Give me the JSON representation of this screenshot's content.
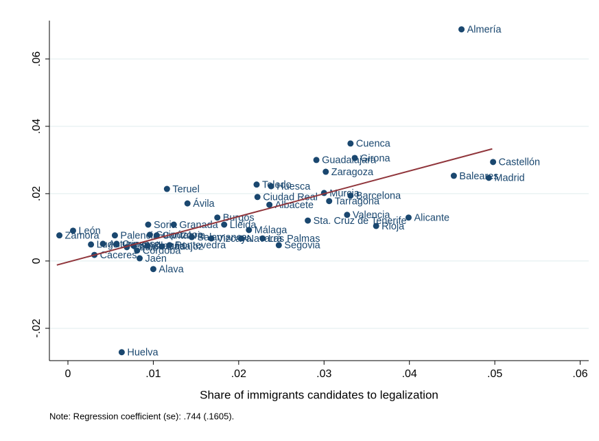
{
  "chart_data": {
    "type": "scatter",
    "x_label": "Share of immigrants candidates to legalization",
    "note": "Note: Regression coefficient (se): .744 (.1605).",
    "color": "#1a476f",
    "labels": [
      "Almería",
      "Cuenca",
      "Girona",
      "Guadalajara",
      "Zaragoza",
      "Castellón",
      "Baleares",
      "Madrid",
      "Teruel",
      "Toledo",
      "Huesca",
      "Murcia",
      "Barcelona",
      "Ciudad Real",
      "Tarragona",
      "Albacete",
      "Ávila",
      "Burgos",
      "Lleida",
      "Málaga",
      "Valencia",
      "Sta. Cruz de Tenerife",
      "Alicante",
      "Rioja",
      "León",
      "Zamora",
      "Soria",
      "Granada",
      "Palencia",
      "Las Palmas",
      "Segovia",
      "Navarra",
      "Vizcaya",
      "Salamanca",
      "Pontevedra",
      "Alava",
      "Huelva",
      "Cáceres",
      "Jaén",
      "Lugo",
      "Asturias",
      "Ourense",
      "Cádiz",
      "Sevilla",
      "Coruña",
      "Guipúzcoa",
      "Cantabria",
      "Córdoba",
      "Badajoz"
    ],
    "x": [
      0.0461,
      0.0331,
      0.0336,
      0.0291,
      0.0302,
      0.0498,
      0.0452,
      0.0493,
      0.0116,
      0.0221,
      0.0238,
      0.03,
      0.0331,
      0.0222,
      0.0306,
      0.0236,
      0.014,
      0.0175,
      0.0183,
      0.0212,
      0.0327,
      0.0281,
      0.0399,
      0.0361,
      0.0006,
      -0.001,
      0.0094,
      0.0124,
      0.0055,
      0.0228,
      0.0247,
      0.0203,
      0.0168,
      0.0145,
      0.0119,
      0.01,
      0.0063,
      0.0031,
      0.0084,
      0.0027,
      0.0041,
      0.0057,
      0.0069,
      0.0077,
      0.0093,
      0.0096,
      0.0104,
      0.0081,
      0.011
    ],
    "y": [
      0.0688,
      0.0349,
      0.0306,
      0.03,
      0.0265,
      0.0294,
      0.0253,
      0.0247,
      0.0214,
      0.0227,
      0.0222,
      0.0202,
      0.0194,
      0.019,
      0.0178,
      0.0167,
      0.0171,
      0.0129,
      0.0108,
      0.0092,
      0.0137,
      0.012,
      0.0129,
      0.0104,
      0.009,
      0.0076,
      0.0108,
      0.0108,
      0.0076,
      0.0067,
      0.0047,
      0.0067,
      0.0067,
      0.0071,
      0.0047,
      -0.0024,
      -0.0271,
      0.0018,
      0.0008,
      0.0049,
      0.0051,
      0.0051,
      0.0041,
      0.0045,
      0.0045,
      0.0078,
      0.0076,
      0.0031,
      0.0043
    ],
    "fit": {
      "color": "#90353b",
      "x": [
        -0.0013,
        0.0497
      ],
      "y": [
        -0.0012,
        0.0333
      ]
    },
    "xlim": [
      -0.00217,
      0.061
    ],
    "ylim": [
      -0.0296,
      0.0714
    ],
    "xticks": [
      0,
      {
        "value": 0.01,
        "label": ".01"
      },
      {
        "value": 0.02,
        "label": ".02"
      },
      {
        "value": 0.03,
        "label": ".03"
      },
      {
        "value": 0.04,
        "label": ".04"
      },
      {
        "value": 0.05,
        "label": ".05"
      },
      {
        "value": 0.06,
        "label": ".06"
      }
    ],
    "yticks": [
      {
        "value": -0.02,
        "label": "-.02"
      },
      0,
      {
        "value": 0.02,
        "label": ".02"
      },
      {
        "value": 0.04,
        "label": ".04"
      },
      {
        "value": 0.06,
        "label": ".06"
      }
    ],
    "grid": true
  }
}
